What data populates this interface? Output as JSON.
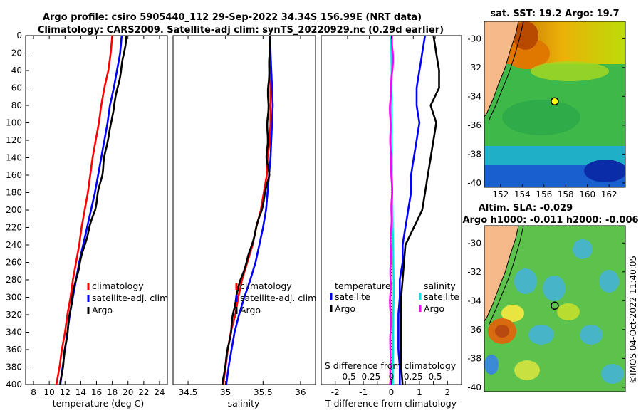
{
  "title_lines": [
    "Argo profile: csiro 5905440_112 29-Sep-2022 34.34S 156.99E (NRT data)",
    "Climatology: CARS2009. Satellite-adj clim: synTS_20220929.nc (0.29d earlier)"
  ],
  "colors": {
    "climatology": "#ff0000",
    "satellite": "#0000ff",
    "argo": "#000000",
    "sal_satellite": "#00e5e5",
    "sal_argo": "#ff00ff",
    "land": "#f5b98a"
  },
  "credit": "©IMOS 04-Oct-2022 11:40:05",
  "chart_data": [
    {
      "type": "line",
      "name": "temperature-profile",
      "xlabel": "temperature (deg C)",
      "ylabel": "",
      "xlim": [
        7,
        25
      ],
      "ylim": [
        400,
        0
      ],
      "xticks": [
        8,
        10,
        12,
        14,
        16,
        18,
        20,
        22,
        24
      ],
      "yticks": [
        0,
        20,
        40,
        60,
        80,
        100,
        120,
        140,
        160,
        180,
        200,
        220,
        240,
        260,
        280,
        300,
        320,
        340,
        360,
        380,
        400
      ],
      "legend": [
        "climatology",
        "satellite-adj. clim",
        "Argo"
      ],
      "series": [
        {
          "name": "climatology",
          "color": "#ff0000",
          "depth": [
            0,
            20,
            40,
            60,
            80,
            100,
            120,
            140,
            160,
            180,
            200,
            220,
            240,
            260,
            280,
            300,
            320,
            340,
            360,
            380,
            400
          ],
          "values": [
            18.0,
            17.8,
            17.5,
            17.0,
            16.6,
            16.3,
            15.9,
            15.5,
            15.2,
            14.9,
            14.5,
            14.1,
            13.8,
            13.4,
            13.0,
            12.7,
            12.3,
            12.0,
            11.6,
            11.3,
            10.9
          ]
        },
        {
          "name": "satellite-adj. clim",
          "color": "#0000ff",
          "depth": [
            0,
            20,
            40,
            60,
            80,
            100,
            120,
            140,
            160,
            180,
            200,
            220,
            240,
            260,
            280,
            300,
            320,
            340,
            360,
            380,
            400
          ],
          "values": [
            19.2,
            19.0,
            18.6,
            18.2,
            17.7,
            17.4,
            17.0,
            16.6,
            16.2,
            15.8,
            15.3,
            14.8,
            14.3,
            13.8,
            13.4,
            13.0,
            12.6,
            12.3,
            12.0,
            11.7,
            11.4
          ]
        },
        {
          "name": "Argo",
          "color": "#000000",
          "depth": [
            0,
            20,
            40,
            60,
            80,
            100,
            120,
            140,
            160,
            180,
            200,
            220,
            240,
            260,
            280,
            300,
            320,
            340,
            360,
            380,
            400
          ],
          "values": [
            19.8,
            19.5,
            19.1,
            18.7,
            18.2,
            17.9,
            17.4,
            17.0,
            16.7,
            16.2,
            15.8,
            15.1,
            14.5,
            13.9,
            13.4,
            12.9,
            12.6,
            12.3,
            12.0,
            11.7,
            11.4
          ]
        }
      ]
    },
    {
      "type": "line",
      "name": "salinity-profile",
      "xlabel": "salinity",
      "xlim": [
        34.3,
        36.2
      ],
      "ylim": [
        400,
        0
      ],
      "xticks": [
        34.5,
        35,
        35.5,
        36
      ],
      "legend": [
        "climatology",
        "satellite-adj. clim",
        "Argo"
      ],
      "series": [
        {
          "name": "climatology",
          "color": "#ff0000",
          "depth": [
            0,
            20,
            40,
            60,
            80,
            100,
            120,
            140,
            160,
            180,
            200,
            220,
            240,
            260,
            280,
            300,
            320,
            340,
            360,
            380,
            400
          ],
          "values": [
            35.59,
            35.59,
            35.59,
            35.6,
            35.6,
            35.6,
            35.59,
            35.56,
            35.55,
            35.51,
            35.47,
            35.41,
            35.36,
            35.29,
            35.22,
            35.17,
            35.13,
            35.07,
            35.03,
            35.0,
            34.97
          ]
        },
        {
          "name": "satellite-adj. clim",
          "color": "#0000ff",
          "depth": [
            0,
            20,
            40,
            60,
            80,
            100,
            120,
            140,
            160,
            180,
            200,
            220,
            240,
            260,
            280,
            300,
            320,
            340,
            360,
            380,
            400
          ],
          "values": [
            35.59,
            35.6,
            35.61,
            35.62,
            35.63,
            35.62,
            35.61,
            35.6,
            35.58,
            35.56,
            35.54,
            35.5,
            35.45,
            35.4,
            35.33,
            35.25,
            35.18,
            35.12,
            35.08,
            35.04,
            35.01
          ]
        },
        {
          "name": "Argo",
          "color": "#000000",
          "depth": [
            0,
            20,
            40,
            60,
            80,
            100,
            120,
            140,
            160,
            180,
            200,
            220,
            240,
            260,
            280,
            300,
            320,
            340,
            360,
            380,
            400
          ],
          "values": [
            35.59,
            35.59,
            35.58,
            35.57,
            35.57,
            35.56,
            35.56,
            35.55,
            35.58,
            35.53,
            35.48,
            35.41,
            35.35,
            35.28,
            35.2,
            35.14,
            35.1,
            35.07,
            35.03,
            34.99,
            34.96
          ]
        }
      ]
    },
    {
      "type": "line",
      "name": "difference-profile",
      "xlabel": "T difference from climatology",
      "xlabel2": "S difference from climatology",
      "xlim": [
        -2.5,
        2.5
      ],
      "ylim": [
        400,
        0
      ],
      "xticks": [
        -2,
        -1.5,
        -1,
        -0.5,
        0,
        0.5,
        1,
        1.5,
        2
      ],
      "xtick_labels": [
        "-2",
        "-1.5",
        "-1",
        "-0.5",
        "0",
        "0.5",
        "1",
        "1.5",
        "2"
      ],
      "sticks": [
        -0.5,
        -0.25,
        0,
        0.25,
        0.5
      ],
      "stick_labels": [
        "-0.5",
        "-0.25",
        "0",
        "0.25",
        "0.5"
      ],
      "legend_temperature_title": "temperature",
      "legend_temperature": [
        "satellite",
        "Argo"
      ],
      "legend_salinity_title": "salinity",
      "legend_salinity": [
        "satellite",
        "Argo"
      ],
      "series": [
        {
          "name": "T satellite",
          "color": "#0000ff",
          "depth": [
            0,
            20,
            40,
            60,
            80,
            100,
            120,
            140,
            160,
            180,
            200,
            220,
            240,
            260,
            280,
            300,
            320,
            340,
            360,
            380,
            400
          ],
          "values": [
            1.2,
            1.1,
            1.0,
            0.9,
            0.9,
            1.0,
            0.9,
            0.8,
            0.7,
            0.7,
            0.6,
            0.5,
            0.4,
            0.4,
            0.3,
            0.3,
            0.25,
            0.25,
            0.25,
            0.3,
            0.3
          ]
        },
        {
          "name": "T Argo",
          "color": "#000000",
          "depth": [
            0,
            20,
            40,
            60,
            80,
            100,
            120,
            140,
            160,
            180,
            200,
            220,
            240,
            260,
            280,
            300,
            320,
            340,
            360,
            380,
            400
          ],
          "values": [
            1.5,
            1.6,
            1.7,
            1.7,
            1.4,
            1.6,
            1.5,
            1.4,
            1.3,
            1.2,
            1.1,
            0.8,
            0.5,
            0.45,
            0.4,
            0.35,
            0.35,
            0.35,
            0.35,
            0.35,
            0.4
          ]
        },
        {
          "name": "S satellite",
          "color": "#00e5e5",
          "depth": [
            0,
            20,
            40,
            60,
            80,
            100,
            120,
            140,
            160,
            180,
            200,
            220,
            240,
            260,
            280,
            300,
            320,
            340,
            360,
            380,
            400
          ],
          "values": [
            -0.01,
            0.0,
            0.01,
            0.01,
            0.01,
            0.01,
            0.01,
            0.02,
            0.02,
            0.03,
            0.04,
            0.05,
            0.06,
            0.07,
            0.08,
            0.08,
            0.07,
            0.06,
            0.06,
            0.05,
            0.05
          ]
        },
        {
          "name": "S Argo",
          "color": "#ff00ff",
          "depth": [
            0,
            20,
            40,
            60,
            80,
            100,
            120,
            140,
            160,
            180,
            200,
            220,
            240,
            260,
            280,
            300,
            320,
            340,
            360,
            380,
            400
          ],
          "values": [
            0.02,
            0.05,
            0.04,
            -0.02,
            -0.04,
            -0.04,
            -0.03,
            -0.02,
            0.01,
            0.02,
            0.01,
            -0.01,
            -0.02,
            -0.02,
            -0.03,
            -0.04,
            -0.03,
            -0.02,
            -0.05,
            -0.02,
            -0.05
          ]
        }
      ]
    },
    {
      "type": "heatmap",
      "name": "sst-map",
      "title": "sat. SST: 19.2 Argo: 19.7",
      "xlim": [
        150.5,
        163.5
      ],
      "ylim": [
        -40.3,
        -28.8
      ],
      "xticks": [
        152,
        154,
        156,
        158,
        160,
        162
      ],
      "yticks": [
        -30,
        -32,
        -34,
        -36,
        -38,
        -40
      ],
      "marker": {
        "lon": 156.99,
        "lat": -34.34
      }
    },
    {
      "type": "heatmap",
      "name": "sla-map",
      "title": "Altim. SLA: -0.029",
      "title2": "Argo h1000: -0.011 h2000: -0.006",
      "xlim": [
        150.5,
        163.5
      ],
      "ylim": [
        -40.3,
        -28.8
      ],
      "xticks": [
        152,
        154,
        156,
        158,
        160,
        162
      ],
      "yticks": [
        -30,
        -32,
        -34,
        -36,
        -38,
        -40
      ],
      "marker": {
        "lon": 156.99,
        "lat": -34.34
      }
    }
  ]
}
